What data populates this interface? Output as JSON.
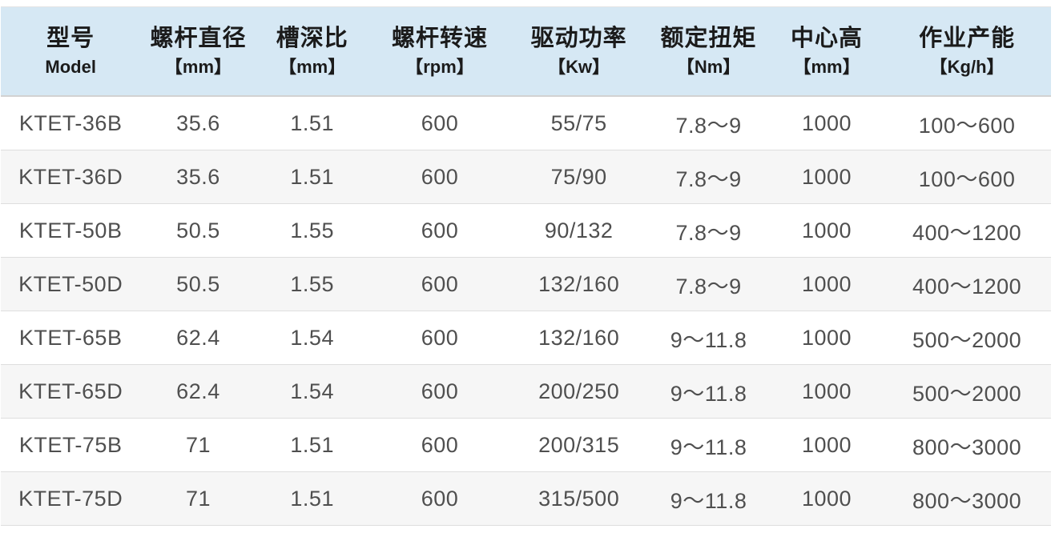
{
  "colors": {
    "header_bg": "#d6e8f4",
    "row_bg": "#ffffff",
    "row_alt_bg": "#f6f6f6",
    "divider": "#dedede",
    "header_text": "#1b1b1b",
    "cell_text": "#4f4f4f"
  },
  "table": {
    "columns": [
      {
        "label": "型号",
        "unit": "Model"
      },
      {
        "label": "螺杆直径",
        "unit": "【mm】"
      },
      {
        "label": "槽深比",
        "unit": "【mm】"
      },
      {
        "label": "螺杆转速",
        "unit": "【rpm】"
      },
      {
        "label": "驱动功率",
        "unit": "【Kw】"
      },
      {
        "label": "额定扭矩",
        "unit": "【Nm】"
      },
      {
        "label": "中心高",
        "unit": "【mm】"
      },
      {
        "label": "作业产能",
        "unit": "【Kg/h】"
      }
    ],
    "rows": [
      [
        "KTET-36B",
        "35.6",
        "1.51",
        "600",
        "55/75",
        "7.8～9",
        "1000",
        "100～600"
      ],
      [
        "KTET-36D",
        "35.6",
        "1.51",
        "600",
        "75/90",
        "7.8～9",
        "1000",
        "100～600"
      ],
      [
        "KTET-50B",
        "50.5",
        "1.55",
        "600",
        "90/132",
        "7.8～9",
        "1000",
        "400～1200"
      ],
      [
        "KTET-50D",
        "50.5",
        "1.55",
        "600",
        "132/160",
        "7.8～9",
        "1000",
        "400～1200"
      ],
      [
        "KTET-65B",
        "62.4",
        "1.54",
        "600",
        "132/160",
        "9～11.8",
        "1000",
        "500～2000"
      ],
      [
        "KTET-65D",
        "62.4",
        "1.54",
        "600",
        "200/250",
        "9～11.8",
        "1000",
        "500～2000"
      ],
      [
        "KTET-75B",
        "71",
        "1.51",
        "600",
        "200/315",
        "9～11.8",
        "1000",
        "800～3000"
      ],
      [
        "KTET-75D",
        "71",
        "1.51",
        "600",
        "315/500",
        "9～11.8",
        "1000",
        "800～3000"
      ]
    ]
  },
  "chart_data": {
    "type": "table",
    "columns": [
      "型号 Model",
      "螺杆直径【mm】",
      "槽深比【mm】",
      "螺杆转速【rpm】",
      "驱动功率【Kw】",
      "额定扭矩【Nm】",
      "中心高【mm】",
      "作业产能【Kg/h】"
    ],
    "rows": [
      [
        "KTET-36B",
        "35.6",
        "1.51",
        "600",
        "55/75",
        "7.8～9",
        "1000",
        "100～600"
      ],
      [
        "KTET-36D",
        "35.6",
        "1.51",
        "600",
        "75/90",
        "7.8～9",
        "1000",
        "100～600"
      ],
      [
        "KTET-50B",
        "50.5",
        "1.55",
        "600",
        "90/132",
        "7.8～9",
        "1000",
        "400～1200"
      ],
      [
        "KTET-50D",
        "50.5",
        "1.55",
        "600",
        "132/160",
        "7.8～9",
        "1000",
        "400～1200"
      ],
      [
        "KTET-65B",
        "62.4",
        "1.54",
        "600",
        "132/160",
        "9～11.8",
        "1000",
        "500～2000"
      ],
      [
        "KTET-65D",
        "62.4",
        "1.54",
        "600",
        "200/250",
        "9～11.8",
        "1000",
        "500～2000"
      ],
      [
        "KTET-75B",
        "71",
        "1.51",
        "600",
        "200/315",
        "9～11.8",
        "1000",
        "800～3000"
      ],
      [
        "KTET-75D",
        "71",
        "1.51",
        "600",
        "315/500",
        "9～11.8",
        "1000",
        "800～3000"
      ]
    ]
  }
}
